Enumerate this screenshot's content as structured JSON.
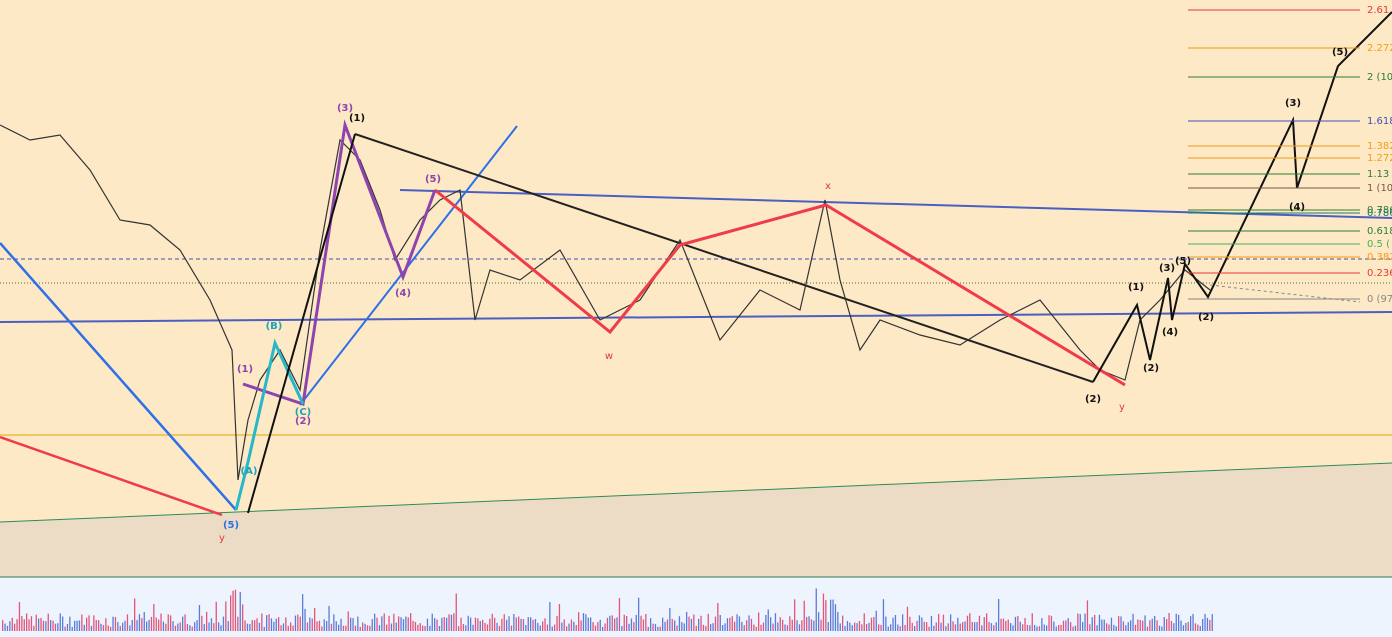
{
  "fib_levels": [
    "2.61",
    "2.272",
    "2 (10",
    "1.618",
    "1.382",
    "1.272",
    "1.13",
    "1 (10",
    "0.786",
    "0.786",
    "0.618",
    "0.5 (",
    "0.382",
    "0.236",
    "0 (97"
  ],
  "wave_labels": [
    "(3)",
    "(1)",
    "(5)",
    "(4)",
    "(B)",
    "(1)",
    "(C)",
    "(2)",
    "(A)",
    "(5)",
    "y",
    "w",
    "x",
    "(2)",
    "y",
    "(1)",
    "(3)",
    "(5)",
    "(4)",
    "(2)",
    "(2)",
    "(3)",
    "(4)",
    "(5)"
  ]
}
